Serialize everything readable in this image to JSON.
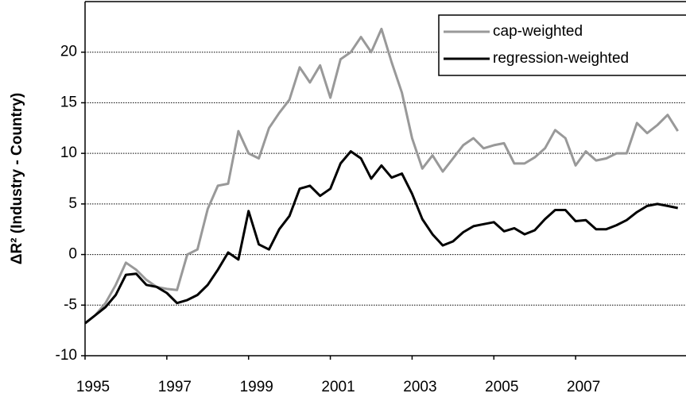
{
  "chart_data": {
    "type": "line",
    "y_label": "ΔR² (Industry - Country)",
    "x": [
      1995,
      1995.25,
      1995.5,
      1995.75,
      1996,
      1996.25,
      1996.5,
      1996.75,
      1997,
      1997.25,
      1997.5,
      1997.75,
      1998,
      1998.25,
      1998.5,
      1998.75,
      1999,
      1999.25,
      1999.5,
      1999.75,
      2000,
      2000.25,
      2000.5,
      2000.75,
      2001,
      2001.25,
      2001.5,
      2001.75,
      2002,
      2002.25,
      2002.5,
      2002.75,
      2003,
      2003.25,
      2003.5,
      2003.75,
      2004,
      2004.25,
      2004.5,
      2004.75,
      2005,
      2005.25,
      2005.5,
      2005.75,
      2006,
      2006.25,
      2006.5,
      2006.75,
      2007,
      2007.25,
      2007.5,
      2007.75,
      2008,
      2008.25,
      2008.5,
      2008.75,
      2009,
      2009.25,
      2009.5
    ],
    "series": [
      {
        "name": "cap-weighted",
        "color": "#999999",
        "values": [
          -6.8,
          -6.0,
          -4.8,
          -3.0,
          -0.8,
          -1.5,
          -2.5,
          -3.2,
          -3.4,
          -3.5,
          0.0,
          0.5,
          4.5,
          6.8,
          7.0,
          12.2,
          10.0,
          9.5,
          12.5,
          14.0,
          15.3,
          18.5,
          17.0,
          18.7,
          15.5,
          19.3,
          20.0,
          21.5,
          20.0,
          22.3,
          19.0,
          16.0,
          11.5,
          8.5,
          9.8,
          8.2,
          9.5,
          10.8,
          11.5,
          10.5,
          10.8,
          11.0,
          9.0,
          9.0,
          9.6,
          10.5,
          12.3,
          11.5,
          8.8,
          10.2,
          9.3,
          9.5,
          10.0,
          10.0,
          13.0,
          12.0,
          12.8,
          13.8,
          12.2
        ]
      },
      {
        "name": "regression-weighted",
        "color": "#000000",
        "values": [
          -6.8,
          -6.0,
          -5.2,
          -4.0,
          -2.0,
          -1.9,
          -3.0,
          -3.2,
          -3.8,
          -4.8,
          -4.5,
          -4.0,
          -3.0,
          -1.5,
          0.2,
          -0.5,
          4.3,
          1.0,
          0.5,
          2.5,
          3.8,
          6.5,
          6.8,
          5.8,
          6.5,
          9.0,
          10.2,
          9.5,
          7.5,
          8.8,
          7.6,
          8.0,
          6.0,
          3.5,
          2.0,
          0.9,
          1.3,
          2.2,
          2.8,
          3.0,
          3.2,
          2.3,
          2.6,
          2.0,
          2.4,
          3.5,
          4.4,
          4.4,
          3.3,
          3.4,
          2.5,
          2.5,
          2.9,
          3.4,
          4.2,
          4.8,
          5.0,
          4.8,
          4.6
        ]
      }
    ],
    "xlim": [
      1995,
      2009.7
    ],
    "xticks": [
      1995,
      1997,
      1999,
      2001,
      2003,
      2005,
      2007
    ],
    "ylim": [
      -10,
      25
    ],
    "yticks": [
      -10,
      -5,
      0,
      5,
      10,
      15,
      20
    ],
    "grid": true,
    "legend": "upper right"
  }
}
